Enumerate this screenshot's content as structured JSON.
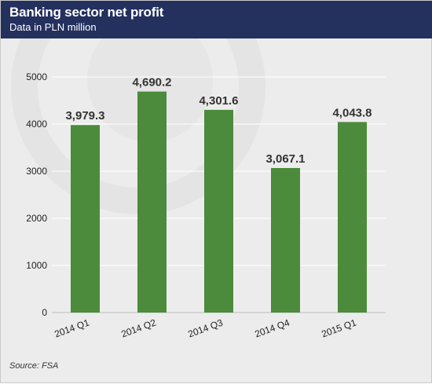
{
  "header": {
    "title": "Banking sector net profit",
    "subtitle": "Data in PLN million"
  },
  "footer": {
    "source": "Source: FSA"
  },
  "colors": {
    "header_bg": "#24305e",
    "bar": "#4b8b3b",
    "grid": "#ffffff",
    "background": "#ececec"
  },
  "chart_data": {
    "type": "bar",
    "title": "Banking sector net profit",
    "subtitle": "Data in PLN million",
    "categories": [
      "2014 Q1",
      "2014 Q2",
      "2014 Q3",
      "2014 Q4",
      "2015 Q1"
    ],
    "values": [
      3979.3,
      4690.2,
      4301.6,
      3067.1,
      4043.8
    ],
    "value_labels": [
      "3,979.3",
      "4,690.2",
      "4,301.6",
      "3,067.1",
      "4,043.8"
    ],
    "yticks": [
      0,
      1000,
      2000,
      3000,
      4000,
      5000
    ],
    "ylim": [
      0,
      5000
    ],
    "xlabel": "",
    "ylabel": "",
    "grid": true,
    "legend": "none"
  }
}
